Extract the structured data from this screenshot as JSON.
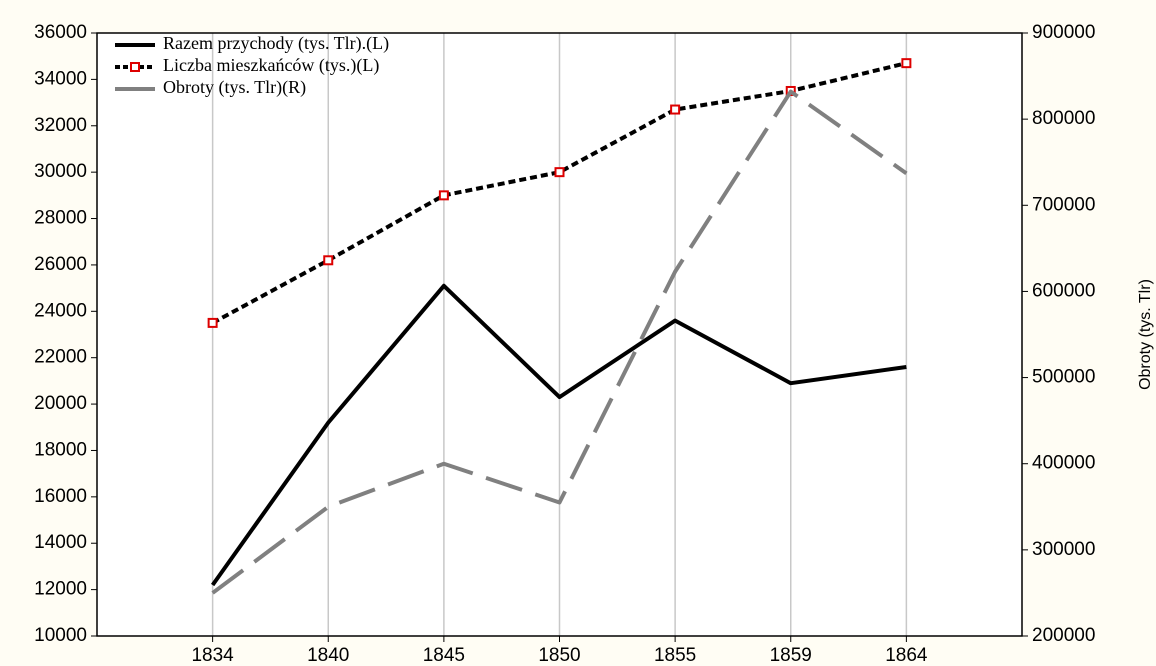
{
  "chart_data": {
    "type": "line",
    "categories": [
      "1834",
      "1840",
      "1845",
      "1850",
      "1855",
      "1859",
      "1864"
    ],
    "series": [
      {
        "name": "Razem przychody (tys. Tlr).(L)",
        "color": "#000000",
        "line_style": "solid",
        "values": [
          12200,
          19200,
          25100,
          20300,
          23600,
          20900,
          21600
        ]
      },
      {
        "name": "Liczba mieszkańców (tys.)(L)",
        "color": "#000000",
        "line_style": "dotted",
        "marker": "square",
        "marker_color": "#dd0000",
        "values": [
          23500,
          26200,
          29000,
          30000,
          32700,
          33500,
          34700
        ]
      },
      {
        "name": "Obroty (tys. Tlr)(R)",
        "color": "#808080",
        "line_style": "dashed",
        "axis": "y2",
        "values": [
          250000,
          350000,
          400000,
          355000,
          623000,
          832000,
          737000
        ]
      }
    ],
    "ylim": [
      10000,
      36000
    ],
    "yticks": [
      10000,
      12000,
      14000,
      16000,
      18000,
      20000,
      22000,
      24000,
      26000,
      28000,
      30000,
      32000,
      34000,
      36000
    ],
    "y2lim": [
      200000,
      900000
    ],
    "y2ticks": [
      200000,
      300000,
      400000,
      500000,
      600000,
      700000,
      800000,
      900000
    ],
    "y2label": "Obroty (tys. Tlr)",
    "grid": "x",
    "legend": "top-left"
  }
}
